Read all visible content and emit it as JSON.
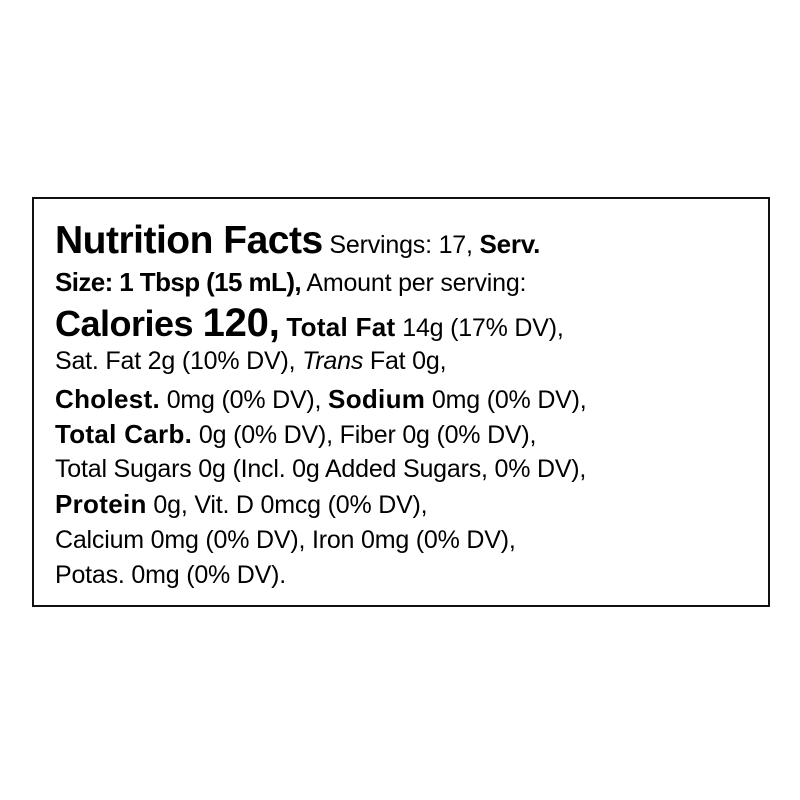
{
  "label": {
    "title": "Nutrition Facts",
    "servings": " Servings: 17, ",
    "serv_label_1": "Serv.",
    "serv_label_2": "Size: 1 Tbsp (15 mL),",
    "amount_per_serving": " Amount per serving:",
    "calories_label": "Calories ",
    "calories_value": "120,",
    "total_fat_label": "Total Fat",
    "total_fat_value": " 14g (17% DV),",
    "sat_fat": "Sat. Fat 2g (10% DV), ",
    "trans_label": "Trans",
    "trans_value": " Fat 0g,",
    "cholest_label": "Cholest.",
    "cholest_value": " 0mg (0% DV), ",
    "sodium_label": "Sodium",
    "sodium_value": " 0mg (0% DV),",
    "carb_label": "Total Carb.",
    "carb_value": " 0g (0% DV), Fiber 0g (0% DV),",
    "sugars": "Total Sugars 0g (Incl. 0g Added Sugars, 0% DV),",
    "protein_label": "Protein",
    "protein_value": " 0g, Vit. D 0mcg (0% DV),",
    "calcium_iron": "Calcium 0mg (0% DV), Iron 0mg (0% DV),",
    "potassium": "Potas. 0mg (0% DV)."
  }
}
